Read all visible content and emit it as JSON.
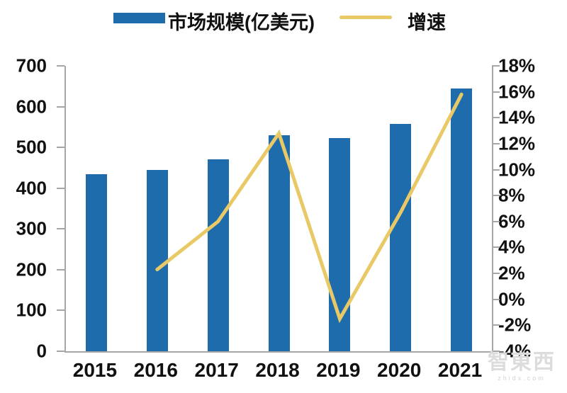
{
  "legend": {
    "bar": {
      "label": "市场规模(亿美元)",
      "color": "#1f6cad"
    },
    "line": {
      "label": "增速",
      "color": "#e8c966"
    }
  },
  "chart_data": {
    "type": "bar",
    "combo": "bar+line",
    "title": "",
    "categories": [
      "2015",
      "2016",
      "2017",
      "2018",
      "2019",
      "2020",
      "2021"
    ],
    "series": [
      {
        "name": "市场规模(亿美元)",
        "type": "bar",
        "axis": "left",
        "color": "#1f6cad",
        "values": [
          435,
          445,
          470,
          530,
          522,
          557,
          645
        ]
      },
      {
        "name": "增速",
        "type": "line",
        "axis": "right",
        "color": "#e8c966",
        "values": [
          null,
          2.3,
          6.0,
          12.8,
          -1.5,
          6.7,
          15.8
        ]
      }
    ],
    "left_axis": {
      "min": 0,
      "max": 700,
      "step": 100,
      "tick_labels": [
        "700",
        "600",
        "500",
        "400",
        "300",
        "200",
        "100",
        "0"
      ]
    },
    "right_axis": {
      "min": -4,
      "max": 18,
      "step": 2,
      "tick_labels": [
        "18%",
        "16%",
        "14%",
        "12%",
        "10%",
        "8%",
        "6%",
        "4%",
        "2%",
        "0%",
        "-2%",
        "-4%"
      ]
    },
    "legend_position": "top",
    "grid": false
  },
  "watermark": {
    "logo": "智東西",
    "domain": "zhidx.com"
  },
  "colors": {
    "bar": "#1f6cad",
    "line": "#e8c966",
    "axis": "#a6a6a6",
    "text": "#111111"
  }
}
